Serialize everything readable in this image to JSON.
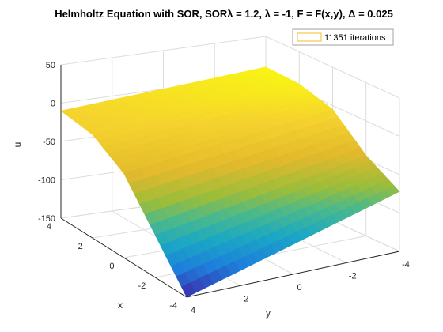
{
  "chart_data": {
    "type": "surface",
    "title": "Helmholtz Equation with SOR, SORλ = 1.2, λ = -1, F = F(x,y), Δ = 0.025",
    "xlabel": "x",
    "ylabel": "y",
    "zlabel": "u",
    "x_ticks": [
      "4",
      "2",
      "0",
      "-2",
      "-4"
    ],
    "y_ticks": [
      "2",
      "0",
      "-2",
      "-4"
    ],
    "y_tick_extra": "4",
    "z_ticks": [
      "50",
      "0",
      "-50",
      "-100",
      "-150"
    ],
    "xlim": [
      -4,
      4
    ],
    "ylim": [
      -4,
      4
    ],
    "zlim": [
      -150,
      50
    ],
    "legend": {
      "label": "11351 iterations",
      "location": "top-right",
      "swatch_color": "#f2c94c"
    },
    "colormap": "parula",
    "grid": true,
    "surface_corners": {
      "x_max_y_max": -10,
      "x_max_y_min": 10,
      "x_min_y_max": -150,
      "x_min_y_min": -72
    },
    "description_values": {
      "x": [
        4,
        2,
        0,
        -2,
        -4
      ],
      "u_at_y_max": [
        -10,
        -15,
        -40,
        -95,
        -150
      ],
      "u_at_y_min": [
        10,
        8,
        -5,
        -45,
        -72
      ]
    }
  }
}
